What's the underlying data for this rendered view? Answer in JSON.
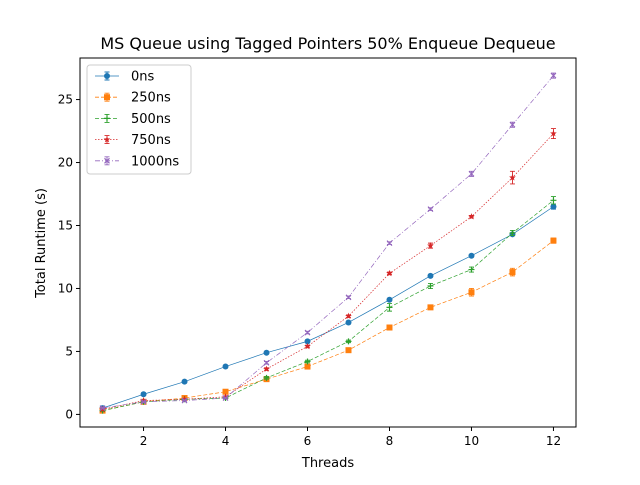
{
  "chart_data": {
    "type": "line",
    "title": "MS Queue using Tagged Pointers 50% Enqueue Dequeue",
    "xlabel": "Threads",
    "ylabel": "Total Runtime (s)",
    "xlim": [
      0.45,
      12.55
    ],
    "ylim": [
      -1.0,
      28.3
    ],
    "xticks": [
      2,
      4,
      6,
      8,
      10,
      12
    ],
    "yticks": [
      0,
      5,
      10,
      15,
      20,
      25
    ],
    "grid": false,
    "legend_position": "top-left",
    "x": [
      1,
      2,
      3,
      4,
      5,
      6,
      7,
      8,
      9,
      10,
      11,
      12
    ],
    "series": [
      {
        "name": "0ns",
        "color": "#1f77b4",
        "marker": "circle",
        "linestyle": "solid",
        "values": [
          0.5,
          1.6,
          2.6,
          3.8,
          4.9,
          5.8,
          7.3,
          9.1,
          11.0,
          12.6,
          14.3,
          16.5
        ],
        "errors": [
          0.05,
          0.05,
          0.05,
          0.05,
          0.05,
          0.1,
          0.1,
          0.1,
          0.1,
          0.1,
          0.1,
          0.2
        ]
      },
      {
        "name": "250ns",
        "color": "#ff7f0e",
        "marker": "square",
        "linestyle": "dashed",
        "values": [
          0.3,
          1.0,
          1.3,
          1.8,
          2.8,
          3.8,
          5.1,
          6.9,
          8.5,
          9.7,
          11.3,
          13.8
        ],
        "errors": [
          0.05,
          0.1,
          0.05,
          0.1,
          0.1,
          0.1,
          0.1,
          0.1,
          0.1,
          0.3,
          0.3,
          0.2
        ]
      },
      {
        "name": "500ns",
        "color": "#2ca02c",
        "marker": "plus",
        "linestyle": "dashed",
        "values": [
          0.3,
          1.0,
          1.2,
          1.3,
          2.9,
          4.2,
          5.8,
          8.5,
          10.2,
          11.5,
          14.4,
          17.0
        ],
        "errors": [
          0.05,
          0.05,
          0.05,
          0.05,
          0.1,
          0.1,
          0.1,
          0.3,
          0.2,
          0.2,
          0.2,
          0.3
        ]
      },
      {
        "name": "750ns",
        "color": "#d62728",
        "marker": "star",
        "linestyle": "dotted",
        "values": [
          0.4,
          1.1,
          1.2,
          1.4,
          3.6,
          5.4,
          7.8,
          11.2,
          13.4,
          15.7,
          18.8,
          22.3
        ],
        "errors": [
          0.05,
          0.05,
          0.05,
          0.05,
          0.1,
          0.1,
          0.1,
          0.1,
          0.2,
          0.1,
          0.5,
          0.4
        ]
      },
      {
        "name": "1000ns",
        "color": "#9467bd",
        "marker": "x",
        "linestyle": "dashdot",
        "values": [
          0.5,
          1.0,
          1.1,
          1.3,
          4.1,
          6.5,
          9.3,
          13.6,
          16.3,
          19.1,
          23.0,
          26.9
        ],
        "errors": [
          0.05,
          0.05,
          0.05,
          0.05,
          0.1,
          0.1,
          0.1,
          0.1,
          0.1,
          0.2,
          0.2,
          0.2
        ]
      }
    ]
  }
}
